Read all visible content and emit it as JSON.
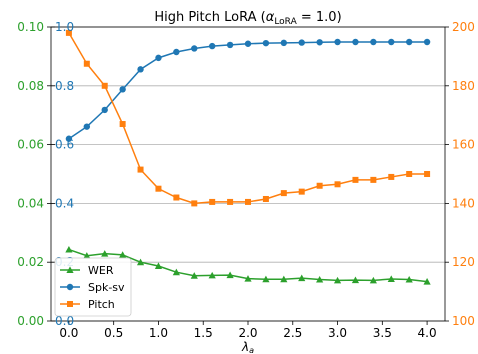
{
  "chart_data": {
    "type": "line",
    "title_main": "High Pitch LoRA (",
    "title_alpha": "α",
    "title_alpha_sub": "LoRA",
    "title_rest": " = 1.0)",
    "xlabel_main": "λ",
    "xlabel_sub": "a",
    "x": [
      0.0,
      0.2,
      0.4,
      0.6,
      0.8,
      1.0,
      1.2,
      1.4,
      1.6,
      1.8,
      2.0,
      2.2,
      2.4,
      2.6,
      2.8,
      3.0,
      3.2,
      3.4,
      3.6,
      3.8,
      4.0
    ],
    "xlim": [
      -0.2,
      4.2
    ],
    "xticks": [
      "0.0",
      "0.5",
      "1.0",
      "1.5",
      "2.0",
      "2.5",
      "3.0",
      "3.5",
      "4.0"
    ],
    "axes": {
      "left_outer": {
        "ylim": [
          0.0,
          0.1
        ],
        "ticks": [
          "0.00",
          "0.02",
          "0.04",
          "0.06",
          "0.08",
          "0.10"
        ],
        "color": "#2ca02c"
      },
      "left_inner": {
        "ylim": [
          0.0,
          1.0
        ],
        "ticks": [
          "0.0",
          "0.2",
          "0.4",
          "0.6",
          "0.8",
          "1.0"
        ],
        "color": "#1f77b4"
      },
      "right": {
        "ylim": [
          100,
          200
        ],
        "ticks": [
          "100",
          "120",
          "140",
          "160",
          "180",
          "200"
        ],
        "color": "#ff7f0e"
      }
    },
    "grid": "horizontal lines at left_inner ticks",
    "legend_placement": "lower-left",
    "series": [
      {
        "name": "WER",
        "axis": "left_outer",
        "color": "#2ca02c",
        "marker": "triangle",
        "values": [
          0.0243,
          0.0222,
          0.0229,
          0.0225,
          0.02,
          0.0187,
          0.0166,
          0.0154,
          0.0155,
          0.0156,
          0.0144,
          0.0142,
          0.0142,
          0.0146,
          0.0141,
          0.0138,
          0.0139,
          0.0138,
          0.0143,
          0.0141,
          0.0134
        ]
      },
      {
        "name": "Spk-sv",
        "axis": "left_inner",
        "color": "#1f77b4",
        "marker": "circle",
        "values": [
          0.62,
          0.661,
          0.718,
          0.788,
          0.856,
          0.895,
          0.915,
          0.927,
          0.935,
          0.939,
          0.943,
          0.945,
          0.946,
          0.947,
          0.948,
          0.949,
          0.949,
          0.949,
          0.949,
          0.949,
          0.949
        ]
      },
      {
        "name": "Pitch",
        "axis": "right",
        "color": "#ff7f0e",
        "marker": "square",
        "values": [
          198.0,
          187.5,
          180.0,
          167.0,
          151.5,
          145.0,
          142.0,
          140.0,
          140.5,
          140.5,
          140.5,
          141.5,
          143.5,
          144.0,
          146.0,
          146.5,
          148.0,
          148.0,
          149.0,
          150.0,
          150.0
        ]
      }
    ]
  }
}
